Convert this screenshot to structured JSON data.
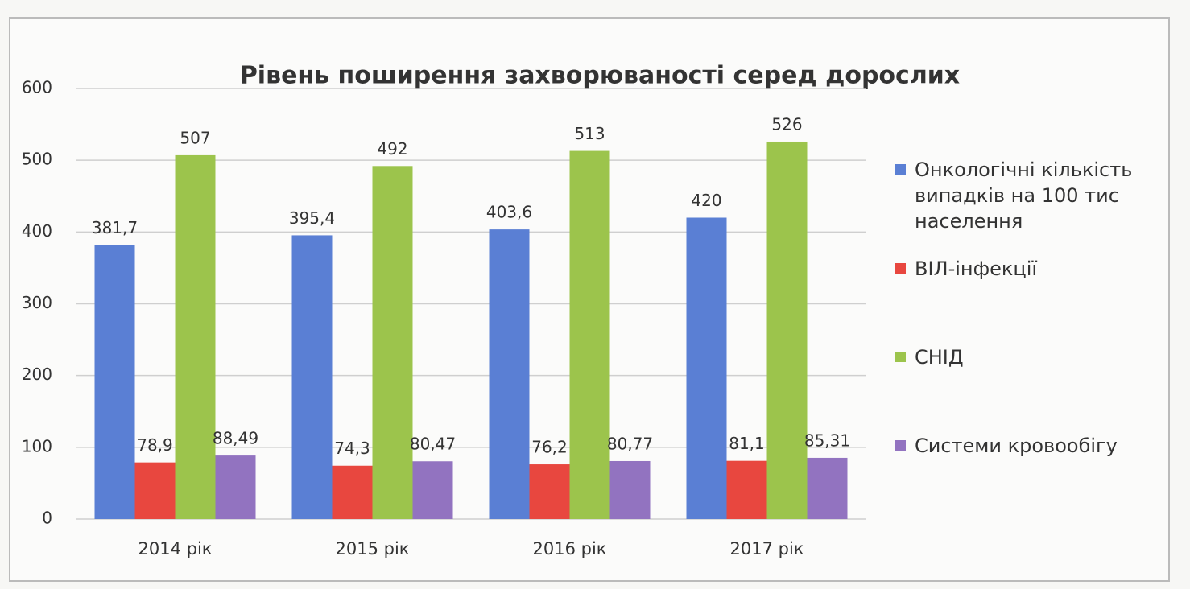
{
  "chart_data": {
    "type": "bar",
    "title": "Рівень поширення захворюваності серед дорослих",
    "categories": [
      "2014 рік",
      "2015 рік",
      "2016 рік",
      "2017 рік"
    ],
    "series": [
      {
        "name": "Онкологічні кількість випадків на 100 тис населення",
        "color": "#5a7fd4",
        "values": [
          381.7,
          395.4,
          403.6,
          420
        ],
        "value_labels": [
          "381,7",
          "395,4",
          "403,6",
          "420"
        ]
      },
      {
        "name": "ВІЛ-інфекції",
        "color": "#e8473f",
        "values": [
          78.9,
          74.3,
          76.2,
          81.1
        ],
        "value_labels": [
          "78,9",
          "74,3",
          "76,2",
          "81,1"
        ]
      },
      {
        "name": "СНІД",
        "color": "#9cc44c",
        "values": [
          507,
          492,
          513,
          526
        ]
      },
      {
        "name": "Системи кровообігу",
        "color": "#9273c0",
        "values": [
          88.49,
          80.47,
          80.77,
          85.31
        ],
        "value_labels": [
          "88,49",
          "80,47",
          "80,77",
          "85,31"
        ]
      }
    ],
    "ylim": [
      0,
      600
    ],
    "yticks": [
      0,
      100,
      200,
      300,
      400,
      500,
      600
    ],
    "grid": true,
    "legend": "right"
  }
}
